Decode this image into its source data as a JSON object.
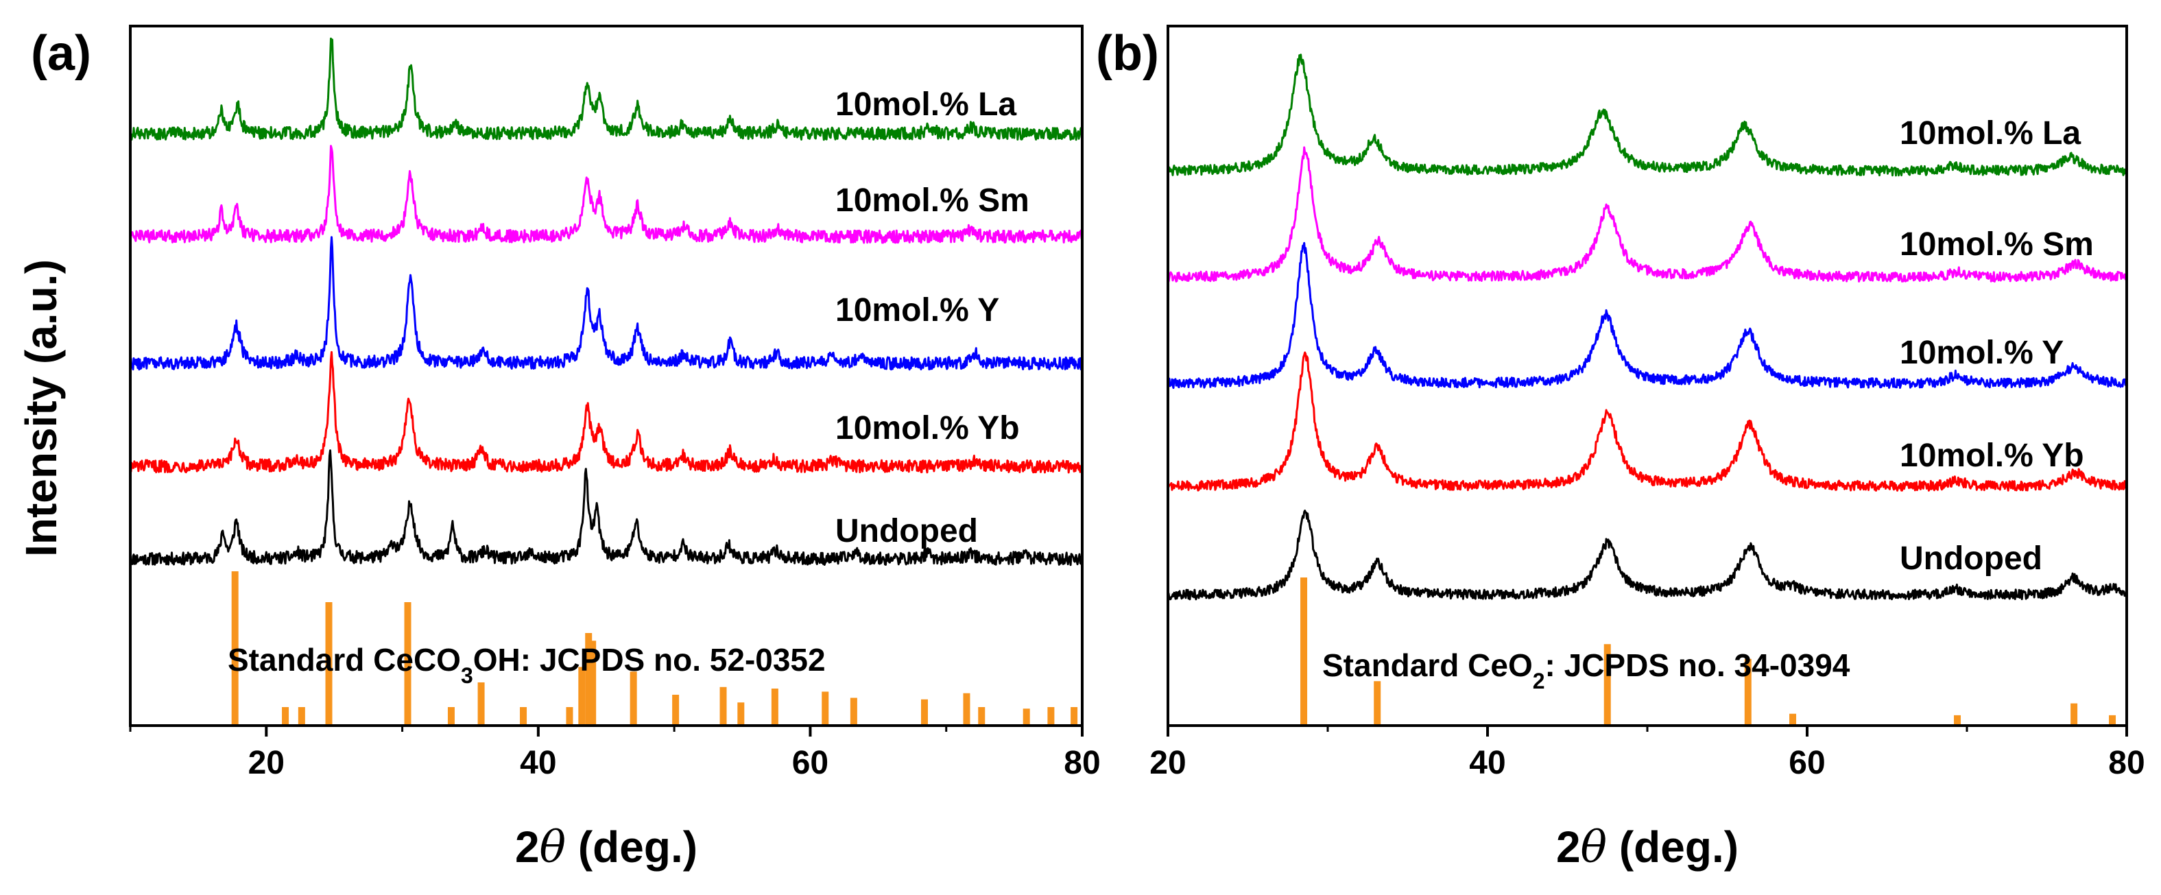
{
  "ylabel": "Intensity (a.u.)",
  "chart_data": [
    {
      "panel": "(a)",
      "type": "line",
      "title": "",
      "xlabel_prefix": "2",
      "xlabel_symbol": "θ",
      "xlabel_suffix": " (deg.)",
      "ylabel": "Intensity (a.u.)",
      "xlim": [
        10,
        80
      ],
      "xticks": [
        20,
        40,
        60,
        80
      ],
      "series": [
        {
          "name": "Undoped",
          "color": "#000000",
          "offset": 0,
          "peaks": [
            [
              16.8,
              40,
              0.18
            ],
            [
              17.8,
              55,
              0.25
            ],
            [
              22.3,
              8,
              0.3
            ],
            [
              24.7,
              150,
              0.2
            ],
            [
              29.3,
              18,
              0.3
            ],
            [
              30.6,
              80,
              0.35
            ],
            [
              33.7,
              50,
              0.2
            ],
            [
              36.1,
              12,
              0.3
            ],
            [
              39.5,
              8,
              0.3
            ],
            [
              43.5,
              120,
              0.22
            ],
            [
              44.3,
              65,
              0.25
            ],
            [
              47.2,
              52,
              0.3
            ],
            [
              50.6,
              20,
              0.3
            ],
            [
              54.0,
              20,
              0.3
            ],
            [
              57.5,
              12,
              0.3
            ],
            [
              63.3,
              10,
              0.3
            ],
            [
              68.6,
              8,
              0.3
            ],
            [
              71.8,
              10,
              0.3
            ],
            [
              75.7,
              8,
              0.3
            ]
          ]
        },
        {
          "name": "10mol.% Yb",
          "color": "#ff0000",
          "offset": 1,
          "peaks": [
            [
              17.8,
              40,
              0.3
            ],
            [
              22.2,
              10,
              0.35
            ],
            [
              24.8,
              160,
              0.25
            ],
            [
              30.5,
              100,
              0.35
            ],
            [
              35.8,
              25,
              0.3
            ],
            [
              43.6,
              80,
              0.3
            ],
            [
              44.5,
              50,
              0.3
            ],
            [
              47.3,
              45,
              0.3
            ],
            [
              50.6,
              15,
              0.3
            ],
            [
              54.1,
              22,
              0.3
            ],
            [
              57.4,
              10,
              0.3
            ],
            [
              61.7,
              10,
              0.3
            ],
            [
              72.2,
              10,
              0.3
            ]
          ]
        },
        {
          "name": "10mol.% Y",
          "color": "#0000ff",
          "offset": 2,
          "peaks": [
            [
              17.8,
              55,
              0.35
            ],
            [
              22.2,
              10,
              0.35
            ],
            [
              24.8,
              175,
              0.2
            ],
            [
              30.6,
              130,
              0.3
            ],
            [
              35.9,
              20,
              0.3
            ],
            [
              43.6,
              100,
              0.3
            ],
            [
              44.5,
              60,
              0.3
            ],
            [
              47.3,
              50,
              0.3
            ],
            [
              50.7,
              15,
              0.3
            ],
            [
              54.1,
              30,
              0.25
            ],
            [
              57.5,
              15,
              0.3
            ],
            [
              61.7,
              12,
              0.3
            ],
            [
              63.7,
              12,
              0.3
            ],
            [
              72.2,
              15,
              0.3
            ]
          ]
        },
        {
          "name": "10mol.% Sm",
          "color": "#ff00ff",
          "offset": 3,
          "peaks": [
            [
              16.7,
              35,
              0.2
            ],
            [
              17.8,
              40,
              0.25
            ],
            [
              24.8,
              135,
              0.2
            ],
            [
              30.6,
              90,
              0.3
            ],
            [
              35.9,
              10,
              0.3
            ],
            [
              43.6,
              80,
              0.3
            ],
            [
              44.5,
              50,
              0.3
            ],
            [
              47.3,
              45,
              0.3
            ],
            [
              50.7,
              15,
              0.3
            ],
            [
              54.1,
              20,
              0.3
            ],
            [
              57.6,
              12,
              0.3
            ],
            [
              71.8,
              10,
              0.3
            ]
          ]
        },
        {
          "name": "10mol.% La",
          "color": "#008000",
          "offset": 4,
          "peaks": [
            [
              16.7,
              35,
              0.18
            ],
            [
              17.9,
              40,
              0.25
            ],
            [
              24.8,
              140,
              0.2
            ],
            [
              30.6,
              95,
              0.3
            ],
            [
              33.9,
              12,
              0.3
            ],
            [
              43.6,
              70,
              0.3
            ],
            [
              44.5,
              45,
              0.3
            ],
            [
              47.3,
              40,
              0.3
            ],
            [
              50.7,
              15,
              0.3
            ],
            [
              54.1,
              20,
              0.3
            ],
            [
              57.6,
              12,
              0.3
            ],
            [
              68.8,
              10,
              0.3
            ],
            [
              71.9,
              10,
              0.3
            ]
          ]
        }
      ],
      "reference": {
        "label_pre": "Standard CeCO",
        "label_sub": "3",
        "label_post": "OH: JCPDS no. 52-0352",
        "color": "#f7941d",
        "lines": [
          [
            17.7,
            100
          ],
          [
            21.4,
            12
          ],
          [
            22.6,
            12
          ],
          [
            24.6,
            80
          ],
          [
            30.4,
            80
          ],
          [
            33.6,
            12
          ],
          [
            35.8,
            28
          ],
          [
            38.9,
            12
          ],
          [
            42.3,
            12
          ],
          [
            43.2,
            38
          ],
          [
            43.7,
            60
          ],
          [
            44.0,
            55
          ],
          [
            47.0,
            35
          ],
          [
            50.1,
            20
          ],
          [
            53.6,
            25
          ],
          [
            54.9,
            15
          ],
          [
            57.4,
            24
          ],
          [
            61.1,
            22
          ],
          [
            63.2,
            18
          ],
          [
            68.4,
            17
          ],
          [
            71.5,
            21
          ],
          [
            72.6,
            12
          ],
          [
            75.9,
            11
          ],
          [
            77.7,
            12
          ],
          [
            79.4,
            12
          ]
        ]
      }
    },
    {
      "panel": "(b)",
      "type": "line",
      "title": "",
      "xlabel_prefix": "2",
      "xlabel_symbol": "θ",
      "xlabel_suffix": " (deg.)",
      "ylabel": "",
      "xlim": [
        20,
        80
      ],
      "xticks": [
        20,
        40,
        60,
        80
      ],
      "series": [
        {
          "name": "Undoped",
          "color": "#000000",
          "offset": 0,
          "peaks": [
            [
              28.6,
              120,
              0.6
            ],
            [
              33.1,
              45,
              0.6
            ],
            [
              47.5,
              75,
              0.8
            ],
            [
              56.4,
              70,
              0.8
            ],
            [
              59.1,
              8,
              0.6
            ],
            [
              69.4,
              8,
              0.6
            ],
            [
              76.7,
              25,
              0.6
            ],
            [
              79.1,
              10,
              0.6
            ]
          ]
        },
        {
          "name": "10mol.% Yb",
          "color": "#ff0000",
          "offset": 1,
          "peaks": [
            [
              28.6,
              190,
              0.6
            ],
            [
              33.1,
              55,
              0.6
            ],
            [
              47.5,
              105,
              0.8
            ],
            [
              56.4,
              90,
              0.8
            ],
            [
              69.4,
              8,
              0.6
            ],
            [
              76.8,
              20,
              0.8
            ]
          ]
        },
        {
          "name": "10mol.% Y",
          "color": "#0000ff",
          "offset": 2,
          "peaks": [
            [
              28.5,
              200,
              0.55
            ],
            [
              33.0,
              45,
              0.6
            ],
            [
              47.4,
              100,
              0.8
            ],
            [
              56.3,
              75,
              0.8
            ],
            [
              69.3,
              12,
              0.6
            ],
            [
              76.7,
              25,
              0.8
            ]
          ]
        },
        {
          "name": "10mol.% Sm",
          "color": "#ff00ff",
          "offset": 3,
          "peaks": [
            [
              28.6,
              185,
              0.6
            ],
            [
              33.2,
              50,
              0.6
            ],
            [
              47.5,
              100,
              0.8
            ],
            [
              56.4,
              75,
              0.8
            ],
            [
              69.4,
              8,
              0.6
            ],
            [
              76.8,
              20,
              0.8
            ]
          ]
        },
        {
          "name": "10mol.% La",
          "color": "#008000",
          "offset": 4,
          "peaks": [
            [
              28.3,
              165,
              0.7
            ],
            [
              32.9,
              45,
              0.6
            ],
            [
              47.2,
              85,
              0.9
            ],
            [
              56.1,
              65,
              0.8
            ],
            [
              69.2,
              8,
              0.6
            ],
            [
              76.5,
              20,
              0.8
            ]
          ]
        }
      ],
      "reference": {
        "label_pre": "Standard CeO",
        "label_sub": "2",
        "label_post": ": JCPDS no. 34-0394",
        "color": "#f7941d",
        "lines": [
          [
            28.5,
            100
          ],
          [
            33.1,
            30
          ],
          [
            47.5,
            55
          ],
          [
            56.3,
            45
          ],
          [
            59.1,
            8
          ],
          [
            69.4,
            7
          ],
          [
            76.7,
            15
          ],
          [
            79.1,
            7
          ]
        ]
      }
    }
  ]
}
